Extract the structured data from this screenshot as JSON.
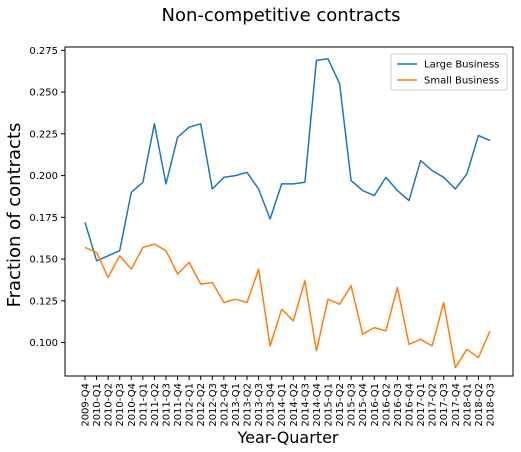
{
  "chart_data": {
    "type": "line",
    "title": "Non-competitive contracts",
    "xlabel": "Year-Quarter",
    "ylabel": "Fraction of contracts",
    "ylim": [
      0.08,
      0.277
    ],
    "yticks": [
      "0.100",
      "0.125",
      "0.150",
      "0.175",
      "0.200",
      "0.225",
      "0.250",
      "0.275"
    ],
    "grid": false,
    "legend_position": "top-right",
    "categories": [
      "2009-Q4",
      "2010-Q1",
      "2010-Q2",
      "2010-Q3",
      "2010-Q4",
      "2011-Q1",
      "2011-Q2",
      "2011-Q3",
      "2011-Q4",
      "2012-Q1",
      "2012-Q2",
      "2012-Q3",
      "2012-Q4",
      "2013-Q1",
      "2013-Q2",
      "2013-Q3",
      "2013-Q4",
      "2014-Q1",
      "2014-Q2",
      "2014-Q3",
      "2014-Q4",
      "2015-Q1",
      "2015-Q2",
      "2015-Q3",
      "2015-Q4",
      "2016-Q1",
      "2016-Q2",
      "2016-Q3",
      "2016-Q4",
      "2017-Q1",
      "2017-Q2",
      "2017-Q3",
      "2017-Q4",
      "2018-Q1",
      "2018-Q2",
      "2018-Q3"
    ],
    "series": [
      {
        "name": "Large Business",
        "color": "#1f77b4",
        "values": [
          0.172,
          0.149,
          0.152,
          0.155,
          0.19,
          0.196,
          0.231,
          0.195,
          0.223,
          0.229,
          0.231,
          0.192,
          0.199,
          0.2,
          0.202,
          0.192,
          0.174,
          0.195,
          0.195,
          0.196,
          0.269,
          0.27,
          0.255,
          0.197,
          0.191,
          0.188,
          0.199,
          0.191,
          0.185,
          0.209,
          0.203,
          0.199,
          0.192,
          0.201,
          0.224,
          0.221
        ]
      },
      {
        "name": "Small Business",
        "color": "#ff7f0e",
        "values": [
          0.157,
          0.154,
          0.139,
          0.152,
          0.144,
          0.157,
          0.159,
          0.155,
          0.141,
          0.148,
          0.135,
          0.136,
          0.124,
          0.126,
          0.124,
          0.144,
          0.098,
          0.12,
          0.113,
          0.137,
          0.095,
          0.126,
          0.123,
          0.134,
          0.105,
          0.109,
          0.107,
          0.133,
          0.099,
          0.102,
          0.098,
          0.124,
          0.085,
          0.096,
          0.091,
          0.107
        ]
      }
    ]
  }
}
